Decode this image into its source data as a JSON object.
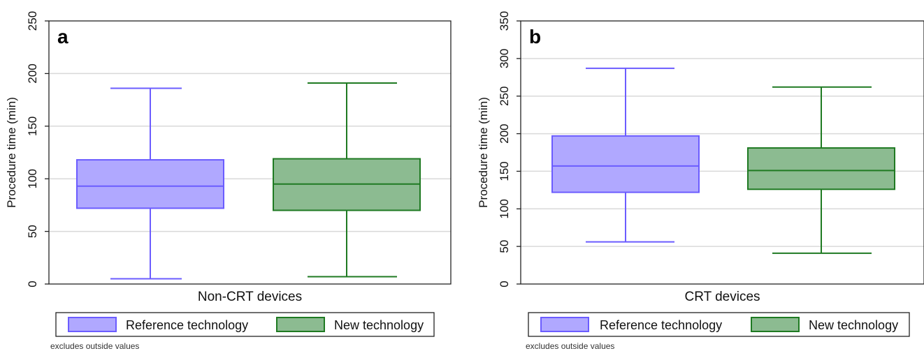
{
  "chart_data": [
    {
      "type": "box",
      "panel_label": "a",
      "ylabel": "Procedure time (min)",
      "xlabel": "Non-CRT devices",
      "ylim": [
        0,
        250
      ],
      "yticks": [
        0,
        50,
        100,
        150,
        200,
        250
      ],
      "grid": true,
      "legend_position": "bottom",
      "note": "excludes outside values",
      "series": [
        {
          "name": "Reference technology",
          "min": 5,
          "q1": 72,
          "median": 93,
          "q3": 118,
          "max": 186,
          "fill": "#b0a8ff",
          "stroke": "#6b5cff"
        },
        {
          "name": "New technology",
          "min": 7,
          "q1": 70,
          "median": 95,
          "q3": 119,
          "max": 191,
          "fill": "#8cbb91",
          "stroke": "#1f7a22"
        }
      ]
    },
    {
      "type": "box",
      "panel_label": "b",
      "ylabel": "Procedure time (min)",
      "xlabel": "CRT devices",
      "ylim": [
        0,
        350
      ],
      "yticks": [
        0,
        50,
        100,
        150,
        200,
        250,
        300,
        350
      ],
      "grid": true,
      "legend_position": "bottom",
      "note": "excludes outside values",
      "series": [
        {
          "name": "Reference technology",
          "min": 56,
          "q1": 122,
          "median": 157,
          "q3": 197,
          "max": 287,
          "fill": "#b0a8ff",
          "stroke": "#6b5cff"
        },
        {
          "name": "New technology",
          "min": 41,
          "q1": 126,
          "median": 151,
          "q3": 181,
          "max": 262,
          "fill": "#8cbb91",
          "stroke": "#1f7a22"
        }
      ]
    }
  ]
}
